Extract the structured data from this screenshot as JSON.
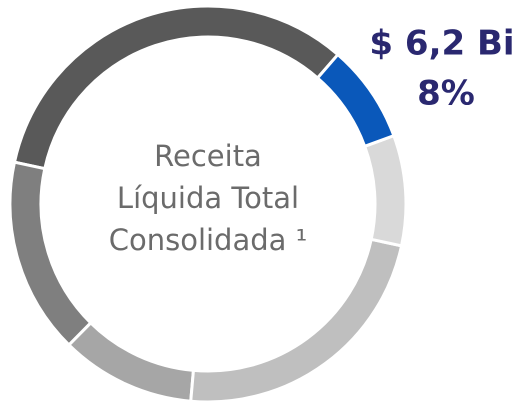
{
  "chart_data": {
    "type": "donut",
    "categories": [
      null,
      null,
      null,
      null,
      null,
      null
    ],
    "values": [
      8,
      9,
      23,
      11,
      16,
      33
    ],
    "value_labels": [
      "8%",
      null,
      null,
      null,
      null,
      null
    ],
    "colors": [
      "#0a58ba",
      "#d9d9d9",
      "#bfbfbf",
      "#a6a6a6",
      "#7f7f7f",
      "#595959"
    ],
    "annotations": [
      "$ 6,2 Bi"
    ],
    "center_text": [
      "Receita",
      "Líquida Total",
      "Consolidada ¹"
    ]
  }
}
